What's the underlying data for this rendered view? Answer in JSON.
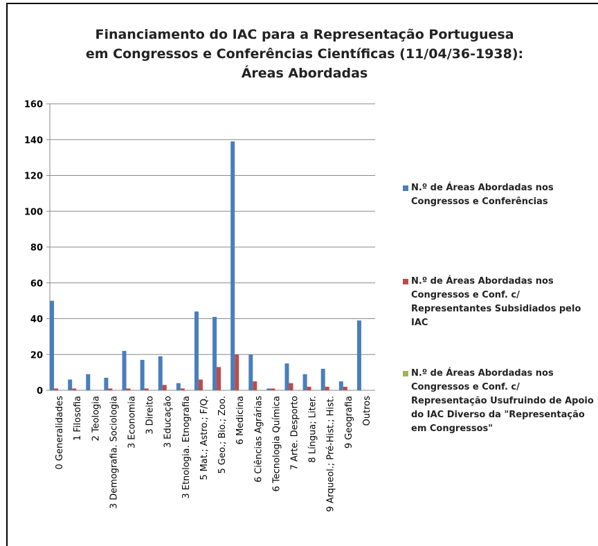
{
  "chart_data": {
    "type": "bar",
    "title": "Financiamento do IAC para a Representação Portuguesa em Congressos e Conferências Científicas (11/04/36-1938): Áreas Abordadas",
    "categories": [
      "0 Generalidades",
      "1 Filosofia",
      "2 Teologia",
      "3 Demografia. Sociologia",
      "3 Economia",
      "3 Direito",
      "3 Educação",
      "3 Etnologia. Etnografia",
      "5 Mat.; Astro.; F/Q.",
      "5 Geo.; Bio.; Zoo.",
      "6 Medicina",
      "6 Ciências Agrárias",
      "6 Tecnologia Química",
      "7 Arte. Desporto",
      "8 Língua; Liter.",
      "9 Arqueol.; Pré-Hist.; Hist.",
      "9 Geografia",
      "Outros"
    ],
    "series": [
      {
        "name": "N.º de Áreas Abordadas nos Congressos e Conferências",
        "color": "#4a7ebb",
        "values": [
          50,
          6,
          9,
          7,
          22,
          17,
          19,
          4,
          44,
          41,
          139,
          20,
          1,
          15,
          9,
          12,
          5,
          39
        ]
      },
      {
        "name": "N.º de Áreas Abordadas nos Congressos e Conf. c/ Representantes Subsidiados pelo IAC",
        "color": "#be4b48",
        "values": [
          1,
          1,
          0,
          1,
          1,
          1,
          3,
          1,
          6,
          13,
          20,
          5,
          1,
          4,
          2,
          2,
          2,
          0
        ]
      },
      {
        "name": "N.º de Áreas Abordadas nos Congressos e Conf. c/ Representação Usufruindo de Apoio do IAC Diverso da \"Representação em Congressos\"",
        "color": "#98b954",
        "values": [
          0,
          0,
          0,
          0,
          0,
          0,
          0,
          0,
          0,
          0,
          0,
          0,
          0,
          0,
          0,
          0,
          0,
          0
        ]
      }
    ],
    "ylim": [
      0,
      160
    ],
    "yticks": [
      0,
      20,
      40,
      60,
      80,
      100,
      120,
      140,
      160
    ],
    "grid": true,
    "legend": "right"
  }
}
